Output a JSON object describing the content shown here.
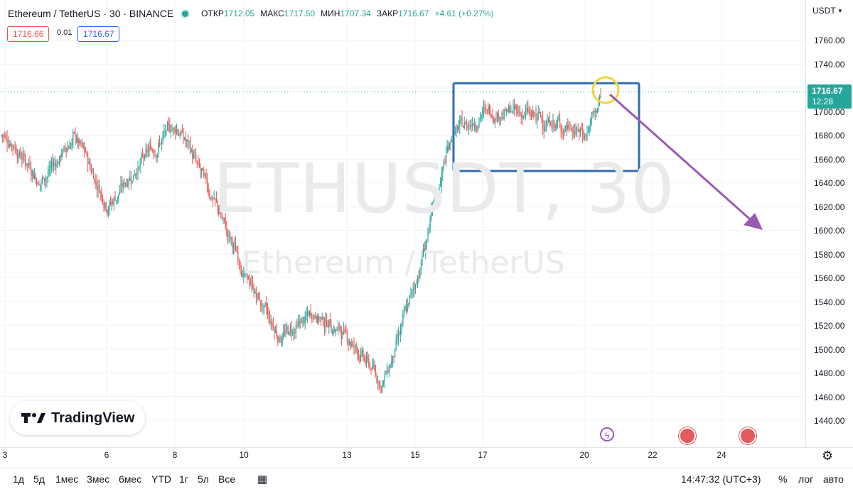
{
  "header": {
    "symbol_title": "Ethereum / TetherUS · 30 · BINANCE",
    "ohlc": [
      {
        "key": "ОТКР",
        "value": "1712.05"
      },
      {
        "key": "МАКС",
        "value": "1717.50"
      },
      {
        "key": "МИН",
        "value": "1707.34"
      },
      {
        "key": "ЗАКР",
        "value": "1716.67"
      },
      {
        "key": "",
        "value": "+4.61 (+0.27%)"
      }
    ],
    "sell_price": "1716.66",
    "spread": "0.01",
    "buy_price": "1716.67"
  },
  "watermark": {
    "symbol": "ETHUSDT, 30",
    "name": "Ethereum / TetherUS"
  },
  "price_axis": {
    "currency": "USDT",
    "last_price": "1716.67",
    "countdown": "12:28",
    "ticks": [
      "1760.00",
      "1740.00",
      "1720.00",
      "1700.00",
      "1680.00",
      "1660.00",
      "1640.00",
      "1620.00",
      "1600.00",
      "1580.00",
      "1560.00",
      "1540.00",
      "1520.00",
      "1500.00",
      "1480.00",
      "1460.00",
      "1440.00"
    ]
  },
  "time_axis": {
    "ticks": [
      "3",
      "6",
      "8",
      "10",
      "13",
      "15",
      "17",
      "20",
      "22",
      "24"
    ]
  },
  "logo": {
    "text": "TradingView"
  },
  "bottom_toolbar": {
    "ranges": [
      "1д",
      "5д",
      "1мес",
      "3мес",
      "6мес",
      "YTD",
      "1г",
      "5л",
      "Все"
    ],
    "time": "14:47:32 (UTC+3)",
    "percent": "%",
    "log": "лог",
    "auto": "авто"
  },
  "colors": {
    "up": "#26a69a",
    "down": "#ef5350",
    "box": "#2e6db4",
    "arrow": "#9b59b6",
    "circle": "#f5d33b"
  },
  "chart_data": {
    "type": "candlestick",
    "title": "Ethereum / TetherUS · 30 · BINANCE",
    "x_ticks": [
      "3",
      "6",
      "8",
      "10",
      "13",
      "15",
      "17",
      "20",
      "22",
      "24"
    ],
    "ylim": [
      1430,
      1775
    ],
    "price_path": [
      {
        "x": "3",
        "y": 1680
      },
      {
        "x": "4",
        "y": 1640
      },
      {
        "x": "5",
        "y": 1680
      },
      {
        "x": "6",
        "y": 1620
      },
      {
        "x": "7",
        "y": 1660
      },
      {
        "x": "8",
        "y": 1690
      },
      {
        "x": "9",
        "y": 1630
      },
      {
        "x": "10",
        "y": 1560
      },
      {
        "x": "11",
        "y": 1510
      },
      {
        "x": "12",
        "y": 1530
      },
      {
        "x": "13",
        "y": 1510
      },
      {
        "x": "14",
        "y": 1470
      },
      {
        "x": "15",
        "y": 1560
      },
      {
        "x": "16",
        "y": 1680
      },
      {
        "x": "17",
        "y": 1700
      },
      {
        "x": "18",
        "y": 1700
      },
      {
        "x": "19",
        "y": 1690
      },
      {
        "x": "20",
        "y": 1680
      },
      {
        "x": "20.5",
        "y": 1716.67
      }
    ],
    "annotations": {
      "range_box": {
        "y_top": 1724,
        "y_bottom": 1650
      },
      "forecast_arrow": {
        "direction": "down"
      }
    }
  }
}
